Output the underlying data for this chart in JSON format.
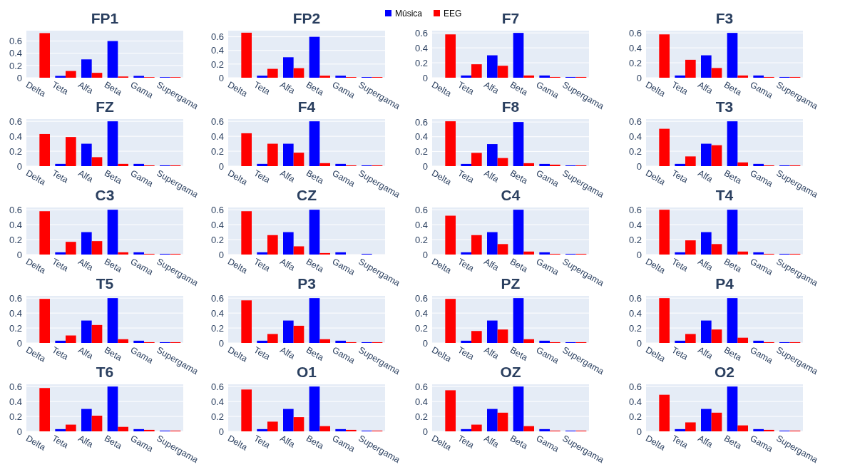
{
  "chart_data": [
    {
      "type": "bar",
      "title": "FP1",
      "categories": [
        "Delta",
        "Teta",
        "Alfa",
        "Beta",
        "Gama",
        "Supergama"
      ],
      "ylim": [
        0,
        0.77
      ],
      "yticks": [
        0,
        0.2,
        0.4,
        0.6
      ],
      "grid": "y",
      "legend": "top",
      "series": [
        {
          "name": "Música",
          "color": "#0000ff",
          "values": [
            0,
            0.03,
            0.3,
            0.6,
            0.03,
            0.01
          ]
        },
        {
          "name": "EEG",
          "color": "#ff0000",
          "values": [
            0.73,
            0.11,
            0.08,
            0.02,
            0.01,
            0.01
          ]
        }
      ]
    },
    {
      "type": "bar",
      "title": "FP2",
      "categories": [
        "Delta",
        "Teta",
        "Alfa",
        "Beta",
        "Gama",
        "Supergama"
      ],
      "ylim": [
        0,
        0.69
      ],
      "yticks": [
        0,
        0.2,
        0.4,
        0.6
      ],
      "grid": "y",
      "series": [
        {
          "color": "#0000ff",
          "values": [
            0,
            0.03,
            0.3,
            0.6,
            0.03,
            0.01
          ]
        },
        {
          "color": "#ff0000",
          "values": [
            0.66,
            0.13,
            0.14,
            0.03,
            0.01,
            0.01
          ]
        }
      ]
    },
    {
      "type": "bar",
      "title": "F7",
      "categories": [
        "Delta",
        "Teta",
        "Alfa",
        "Beta",
        "Gama",
        "Supergama"
      ],
      "ylim": [
        0,
        0.63
      ],
      "yticks": [
        0,
        0.2,
        0.4,
        0.6
      ],
      "grid": "y",
      "series": [
        {
          "color": "#0000ff",
          "values": [
            0,
            0.03,
            0.3,
            0.6,
            0.03,
            0.01
          ]
        },
        {
          "color": "#ff0000",
          "values": [
            0.58,
            0.18,
            0.16,
            0.03,
            0.01,
            0.01
          ]
        }
      ]
    },
    {
      "type": "bar",
      "title": "F3",
      "categories": [
        "Delta",
        "Teta",
        "Alfa",
        "Beta",
        "Gama",
        "Supergama"
      ],
      "ylim": [
        0,
        0.63
      ],
      "yticks": [
        0,
        0.2,
        0.4,
        0.6
      ],
      "grid": "y",
      "series": [
        {
          "color": "#0000ff",
          "values": [
            0,
            0.03,
            0.3,
            0.6,
            0.03,
            0.01
          ]
        },
        {
          "color": "#ff0000",
          "values": [
            0.58,
            0.24,
            0.13,
            0.03,
            0.01,
            0.01
          ]
        }
      ]
    },
    {
      "type": "bar",
      "title": "FZ",
      "categories": [
        "Delta",
        "Teta",
        "Alfa",
        "Beta",
        "Gama",
        "Supergama"
      ],
      "ylim": [
        0,
        0.63
      ],
      "yticks": [
        0,
        0.2,
        0.4,
        0.6
      ],
      "grid": "y",
      "series": [
        {
          "color": "#0000ff",
          "values": [
            0,
            0.03,
            0.3,
            0.6,
            0.03,
            0.01
          ]
        },
        {
          "color": "#ff0000",
          "values": [
            0.43,
            0.39,
            0.12,
            0.03,
            0.01,
            0.01
          ]
        }
      ]
    },
    {
      "type": "bar",
      "title": "F4",
      "categories": [
        "Delta",
        "Teta",
        "Alfa",
        "Beta",
        "Gama",
        "Supergama"
      ],
      "ylim": [
        0,
        0.63
      ],
      "yticks": [
        0,
        0.2,
        0.4,
        0.6
      ],
      "grid": "y",
      "series": [
        {
          "color": "#0000ff",
          "values": [
            0,
            0.03,
            0.3,
            0.6,
            0.03,
            0.01
          ]
        },
        {
          "color": "#ff0000",
          "values": [
            0.44,
            0.3,
            0.18,
            0.04,
            0.01,
            0.01
          ]
        }
      ]
    },
    {
      "type": "bar",
      "title": "F8",
      "categories": [
        "Delta",
        "Teta",
        "Alfa",
        "Beta",
        "Gama",
        "Supergama"
      ],
      "ylim": [
        0,
        0.64
      ],
      "yticks": [
        0,
        0.2,
        0.4,
        0.6
      ],
      "grid": "y",
      "series": [
        {
          "color": "#0000ff",
          "values": [
            0,
            0.03,
            0.3,
            0.6,
            0.03,
            0.01
          ]
        },
        {
          "color": "#ff0000",
          "values": [
            0.61,
            0.18,
            0.11,
            0.04,
            0.02,
            0.01
          ]
        }
      ]
    },
    {
      "type": "bar",
      "title": "T3",
      "categories": [
        "Delta",
        "Teta",
        "Alfa",
        "Beta",
        "Gama",
        "Supergama"
      ],
      "ylim": [
        0,
        0.63
      ],
      "yticks": [
        0,
        0.2,
        0.4,
        0.6
      ],
      "grid": "y",
      "series": [
        {
          "color": "#0000ff",
          "values": [
            0,
            0.03,
            0.3,
            0.6,
            0.03,
            0.01
          ]
        },
        {
          "color": "#ff0000",
          "values": [
            0.5,
            0.13,
            0.28,
            0.05,
            0.01,
            0.01
          ]
        }
      ]
    },
    {
      "type": "bar",
      "title": "C3",
      "categories": [
        "Delta",
        "Teta",
        "Alfa",
        "Beta",
        "Gama",
        "Supergama"
      ],
      "ylim": [
        0,
        0.63
      ],
      "yticks": [
        0,
        0.2,
        0.4,
        0.6
      ],
      "grid": "y",
      "series": [
        {
          "color": "#0000ff",
          "values": [
            0,
            0.03,
            0.3,
            0.6,
            0.03,
            0.01
          ]
        },
        {
          "color": "#ff0000",
          "values": [
            0.58,
            0.17,
            0.18,
            0.03,
            0.01,
            0.01
          ]
        }
      ]
    },
    {
      "type": "bar",
      "title": "CZ",
      "categories": [
        "Delta",
        "Teta",
        "Alfa",
        "Beta",
        "Gama",
        "Supergama"
      ],
      "ylim": [
        0,
        0.63
      ],
      "yticks": [
        0,
        0.2,
        0.4,
        0.6
      ],
      "grid": "y",
      "series": [
        {
          "color": "#0000ff",
          "values": [
            0,
            0.03,
            0.3,
            0.6,
            0.03,
            0.01
          ]
        },
        {
          "color": "#ff0000",
          "values": [
            0.58,
            0.26,
            0.11,
            0.02,
            0,
            0
          ]
        }
      ]
    },
    {
      "type": "bar",
      "title": "C4",
      "categories": [
        "Delta",
        "Teta",
        "Alfa",
        "Beta",
        "Gama",
        "Supergama"
      ],
      "ylim": [
        0,
        0.63
      ],
      "yticks": [
        0,
        0.2,
        0.4,
        0.6
      ],
      "grid": "y",
      "series": [
        {
          "color": "#0000ff",
          "values": [
            0,
            0.03,
            0.3,
            0.6,
            0.03,
            0.01
          ]
        },
        {
          "color": "#ff0000",
          "values": [
            0.52,
            0.26,
            0.14,
            0.04,
            0.01,
            0.01
          ]
        }
      ]
    },
    {
      "type": "bar",
      "title": "T4",
      "categories": [
        "Delta",
        "Teta",
        "Alfa",
        "Beta",
        "Gama",
        "Supergama"
      ],
      "ylim": [
        0,
        0.63
      ],
      "yticks": [
        0,
        0.2,
        0.4,
        0.6
      ],
      "grid": "y",
      "series": [
        {
          "color": "#0000ff",
          "values": [
            0,
            0.03,
            0.3,
            0.6,
            0.03,
            0.01
          ]
        },
        {
          "color": "#ff0000",
          "values": [
            0.6,
            0.19,
            0.14,
            0.04,
            0.01,
            0.01
          ]
        }
      ]
    },
    {
      "type": "bar",
      "title": "T5",
      "categories": [
        "Delta",
        "Teta",
        "Alfa",
        "Beta",
        "Gama",
        "Supergama"
      ],
      "ylim": [
        0,
        0.63
      ],
      "yticks": [
        0,
        0.2,
        0.4,
        0.6
      ],
      "grid": "y",
      "series": [
        {
          "color": "#0000ff",
          "values": [
            0,
            0.03,
            0.3,
            0.6,
            0.03,
            0.01
          ]
        },
        {
          "color": "#ff0000",
          "values": [
            0.59,
            0.1,
            0.24,
            0.05,
            0.01,
            0.01
          ]
        }
      ]
    },
    {
      "type": "bar",
      "title": "P3",
      "categories": [
        "Delta",
        "Teta",
        "Alfa",
        "Beta",
        "Gama",
        "Supergama"
      ],
      "ylim": [
        0,
        0.63
      ],
      "yticks": [
        0,
        0.2,
        0.4,
        0.6
      ],
      "grid": "y",
      "series": [
        {
          "color": "#0000ff",
          "values": [
            0,
            0.03,
            0.3,
            0.6,
            0.03,
            0.01
          ]
        },
        {
          "color": "#ff0000",
          "values": [
            0.57,
            0.12,
            0.23,
            0.05,
            0.01,
            0.01
          ]
        }
      ]
    },
    {
      "type": "bar",
      "title": "PZ",
      "categories": [
        "Delta",
        "Teta",
        "Alfa",
        "Beta",
        "Gama",
        "Supergama"
      ],
      "ylim": [
        0,
        0.63
      ],
      "yticks": [
        0,
        0.2,
        0.4,
        0.6
      ],
      "grid": "y",
      "series": [
        {
          "color": "#0000ff",
          "values": [
            0,
            0.03,
            0.3,
            0.6,
            0.03,
            0.01
          ]
        },
        {
          "color": "#ff0000",
          "values": [
            0.59,
            0.16,
            0.18,
            0.05,
            0.01,
            0.01
          ]
        }
      ]
    },
    {
      "type": "bar",
      "title": "P4",
      "categories": [
        "Delta",
        "Teta",
        "Alfa",
        "Beta",
        "Gama",
        "Supergama"
      ],
      "ylim": [
        0,
        0.63
      ],
      "yticks": [
        0,
        0.2,
        0.4,
        0.6
      ],
      "grid": "y",
      "series": [
        {
          "color": "#0000ff",
          "values": [
            0,
            0.03,
            0.3,
            0.6,
            0.03,
            0.01
          ]
        },
        {
          "color": "#ff0000",
          "values": [
            0.6,
            0.12,
            0.18,
            0.07,
            0.01,
            0.01
          ]
        }
      ]
    },
    {
      "type": "bar",
      "title": "T6",
      "categories": [
        "Delta",
        "Teta",
        "Alfa",
        "Beta",
        "Gama",
        "Supergama"
      ],
      "ylim": [
        0,
        0.63
      ],
      "yticks": [
        0,
        0.2,
        0.4,
        0.6
      ],
      "grid": "y",
      "series": [
        {
          "color": "#0000ff",
          "values": [
            0,
            0.03,
            0.3,
            0.6,
            0.03,
            0.01
          ]
        },
        {
          "color": "#ff0000",
          "values": [
            0.58,
            0.09,
            0.21,
            0.06,
            0.02,
            0.01
          ]
        }
      ]
    },
    {
      "type": "bar",
      "title": "O1",
      "categories": [
        "Delta",
        "Teta",
        "Alfa",
        "Beta",
        "Gama",
        "Supergama"
      ],
      "ylim": [
        0,
        0.63
      ],
      "yticks": [
        0,
        0.2,
        0.4,
        0.6
      ],
      "grid": "y",
      "series": [
        {
          "color": "#0000ff",
          "values": [
            0,
            0.03,
            0.3,
            0.6,
            0.03,
            0.01
          ]
        },
        {
          "color": "#ff0000",
          "values": [
            0.56,
            0.13,
            0.19,
            0.07,
            0.02,
            0.01
          ]
        }
      ]
    },
    {
      "type": "bar",
      "title": "OZ",
      "categories": [
        "Delta",
        "Teta",
        "Alfa",
        "Beta",
        "Gama",
        "Supergama"
      ],
      "ylim": [
        0,
        0.63
      ],
      "yticks": [
        0,
        0.2,
        0.4,
        0.6
      ],
      "grid": "y",
      "series": [
        {
          "color": "#0000ff",
          "values": [
            0,
            0.03,
            0.3,
            0.6,
            0.03,
            0.01
          ]
        },
        {
          "color": "#ff0000",
          "values": [
            0.55,
            0.09,
            0.25,
            0.07,
            0.01,
            0.01
          ]
        }
      ]
    },
    {
      "type": "bar",
      "title": "O2",
      "categories": [
        "Delta",
        "Teta",
        "Alfa",
        "Beta",
        "Gama",
        "Supergama"
      ],
      "ylim": [
        0,
        0.63
      ],
      "yticks": [
        0,
        0.2,
        0.4,
        0.6
      ],
      "grid": "y",
      "series": [
        {
          "color": "#0000ff",
          "values": [
            0,
            0.03,
            0.3,
            0.6,
            0.03,
            0.01
          ]
        },
        {
          "color": "#ff0000",
          "values": [
            0.49,
            0.12,
            0.25,
            0.08,
            0.02,
            0.01
          ]
        }
      ]
    }
  ]
}
